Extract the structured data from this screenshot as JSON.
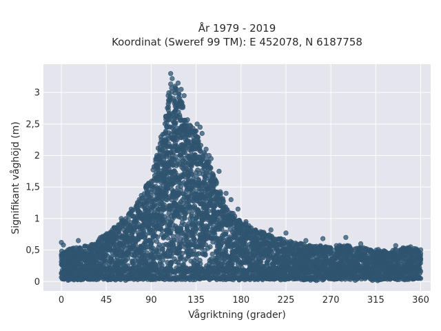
{
  "chart_data": {
    "type": "scatter",
    "title_line1": "År 1979 - 2019",
    "title_line2": "Koordinat (Sweref 99 TM): E 452078, N 6187758",
    "xlabel": "Vågriktning (grader)",
    "ylabel": "Signifikant våghöjd (m)",
    "xlim": [
      -18,
      370
    ],
    "ylim": [
      -0.15,
      3.45
    ],
    "x_ticks": [
      0,
      45,
      90,
      135,
      180,
      225,
      270,
      315,
      360
    ],
    "x_tick_labels": [
      "0",
      "45",
      "90",
      "135",
      "180",
      "225",
      "270",
      "315",
      "360"
    ],
    "y_ticks": [
      0,
      0.5,
      1,
      1.5,
      2,
      2.5,
      3
    ],
    "y_tick_labels": [
      "0",
      "0,5",
      "1",
      "1,5",
      "2",
      "2,5",
      "3"
    ],
    "grid": true,
    "colors": {
      "marker": "#2f5470",
      "plot_bg": "#e5e5ee",
      "grid": "#ffffff"
    },
    "upper_envelope": {
      "x": [
        0,
        10,
        20,
        30,
        45,
        60,
        75,
        90,
        100,
        105,
        110,
        115,
        120,
        125,
        135,
        145,
        155,
        165,
        180,
        200,
        225,
        250,
        270,
        285,
        300,
        315,
        330,
        345,
        360
      ],
      "y": [
        0.5,
        0.52,
        0.55,
        0.6,
        0.75,
        0.95,
        1.2,
        1.7,
        2.3,
        2.7,
        3.2,
        3.15,
        2.9,
        2.6,
        2.4,
        2.0,
        1.6,
        1.2,
        0.95,
        0.8,
        0.65,
        0.58,
        0.55,
        0.6,
        0.55,
        0.52,
        0.5,
        0.55,
        0.5
      ]
    },
    "outliers": [
      {
        "x": 109.5,
        "y": 3.3
      },
      {
        "x": 111,
        "y": 3.22
      },
      {
        "x": 114,
        "y": 3.1
      },
      {
        "x": 117,
        "y": 3.15
      },
      {
        "x": 120,
        "y": 3.05
      },
      {
        "x": 123,
        "y": 2.95
      },
      {
        "x": 107,
        "y": 2.95
      },
      {
        "x": 136,
        "y": 2.5
      },
      {
        "x": 139,
        "y": 2.45
      },
      {
        "x": 141,
        "y": 2.35
      },
      {
        "x": 145,
        "y": 2.1
      },
      {
        "x": 148,
        "y": 2.0
      },
      {
        "x": 150,
        "y": 1.95
      },
      {
        "x": 158,
        "y": 1.75
      },
      {
        "x": 165,
        "y": 1.4
      },
      {
        "x": 170,
        "y": 1.3
      },
      {
        "x": 177,
        "y": 1.15
      },
      {
        "x": 185,
        "y": 0.95
      },
      {
        "x": 210,
        "y": 0.82
      },
      {
        "x": 225,
        "y": 0.77
      },
      {
        "x": 245,
        "y": 0.65
      },
      {
        "x": 262,
        "y": 0.68
      },
      {
        "x": 285,
        "y": 0.7
      },
      {
        "x": 300,
        "y": 0.6
      },
      {
        "x": 335,
        "y": 0.57
      },
      {
        "x": 350,
        "y": 0.55
      },
      {
        "x": 0,
        "y": 0.62
      },
      {
        "x": 2,
        "y": 0.58
      },
      {
        "x": 17,
        "y": 0.65
      },
      {
        "x": 60,
        "y": 1.0
      },
      {
        "x": 70,
        "y": 1.15
      },
      {
        "x": 78,
        "y": 1.3
      }
    ]
  }
}
